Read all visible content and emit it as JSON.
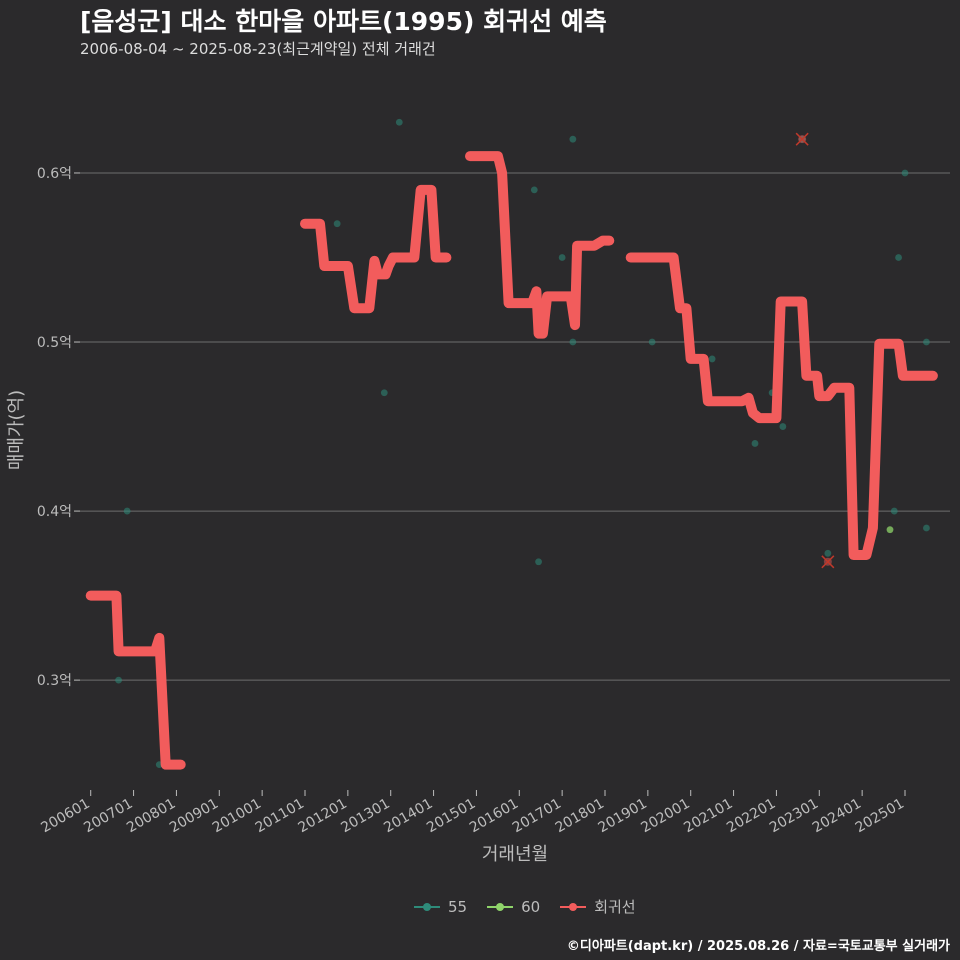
{
  "title": "[음성군] 대소 한마을 아파트(1995) 회귀선 예측",
  "subtitle": "2006-08-04 ~ 2025-08-23(최근계약일) 전체 거래건",
  "caption": "©디아파트(dapt.kr) / 2025.08.26 / 자료=국토교통부 실거래가",
  "colors": {
    "background": "#2b2a2c",
    "s55": "#2e8b7a",
    "s60": "#8fd46a",
    "regression": "#f25c5c",
    "grid": "#6e6e6e"
  },
  "chart_data": {
    "type": "scatter+line",
    "xlabel": "거래년월",
    "ylabel": "매매가(억)",
    "ylim": [
      0.235,
      0.655
    ],
    "xlim": [
      2005.75,
      2026.05
    ],
    "y_ticks": [
      {
        "value": 0.3,
        "label": "0.3억"
      },
      {
        "value": 0.4,
        "label": "0.4억"
      },
      {
        "value": 0.5,
        "label": "0.5억"
      },
      {
        "value": 0.6,
        "label": "0.6억"
      }
    ],
    "x_ticks": [
      "200601",
      "200701",
      "200801",
      "200901",
      "201001",
      "201101",
      "201201",
      "201301",
      "201401",
      "201501",
      "201601",
      "201701",
      "201801",
      "201901",
      "202001",
      "202101",
      "202201",
      "202301",
      "202401",
      "202501"
    ],
    "legend": [
      {
        "name": "55",
        "color": "#2e8b7a"
      },
      {
        "name": "60",
        "color": "#8fd46a"
      },
      {
        "name": "회귀선",
        "color": "#f25c5c"
      }
    ],
    "series": [
      {
        "name": "55",
        "points": [
          [
            2006.65,
            0.3
          ],
          [
            2006.85,
            0.4
          ],
          [
            2007.6,
            0.25
          ],
          [
            2011.75,
            0.57
          ],
          [
            2012.85,
            0.47
          ],
          [
            2013.2,
            0.63
          ],
          [
            2016.35,
            0.59
          ],
          [
            2016.45,
            0.37
          ],
          [
            2017.0,
            0.55
          ],
          [
            2017.25,
            0.62
          ],
          [
            2017.25,
            0.5
          ],
          [
            2019.1,
            0.5
          ],
          [
            2020.5,
            0.49
          ],
          [
            2021.5,
            0.44
          ],
          [
            2021.9,
            0.47
          ],
          [
            2022.0,
            0.46
          ],
          [
            2022.15,
            0.45
          ],
          [
            2022.6,
            0.62
          ],
          [
            2023.2,
            0.375
          ],
          [
            2024.75,
            0.4
          ],
          [
            2024.85,
            0.55
          ],
          [
            2025.0,
            0.6
          ],
          [
            2025.5,
            0.5
          ],
          [
            2025.5,
            0.39
          ]
        ]
      },
      {
        "name": "60",
        "points": [
          [
            2024.65,
            0.389
          ]
        ]
      }
    ],
    "outliers": [
      [
        2022.6,
        0.62
      ],
      [
        2023.2,
        0.37
      ]
    ],
    "regression_segments": [
      [
        [
          2006.0,
          0.35
        ],
        [
          2006.6,
          0.35
        ],
        [
          2006.65,
          0.317
        ],
        [
          2007.5,
          0.317
        ],
        [
          2007.6,
          0.325
        ],
        [
          2007.75,
          0.25
        ],
        [
          2008.1,
          0.25
        ]
      ],
      [
        [
          2011.0,
          0.57
        ],
        [
          2011.35,
          0.57
        ],
        [
          2011.45,
          0.545
        ],
        [
          2012.0,
          0.545
        ],
        [
          2012.15,
          0.52
        ],
        [
          2012.5,
          0.52
        ],
        [
          2012.62,
          0.548
        ],
        [
          2012.7,
          0.54
        ],
        [
          2012.88,
          0.54
        ],
        [
          2012.95,
          0.545
        ],
        [
          2013.05,
          0.55
        ],
        [
          2013.55,
          0.55
        ],
        [
          2013.7,
          0.59
        ],
        [
          2013.95,
          0.59
        ],
        [
          2014.05,
          0.55
        ],
        [
          2014.3,
          0.55
        ]
      ],
      [
        [
          2014.85,
          0.61
        ],
        [
          2015.5,
          0.61
        ],
        [
          2015.6,
          0.6
        ],
        [
          2015.75,
          0.523
        ],
        [
          2016.3,
          0.523
        ],
        [
          2016.4,
          0.53
        ],
        [
          2016.45,
          0.505
        ],
        [
          2016.55,
          0.505
        ],
        [
          2016.65,
          0.527
        ],
        [
          2017.2,
          0.527
        ],
        [
          2017.3,
          0.51
        ],
        [
          2017.35,
          0.557
        ],
        [
          2017.75,
          0.557
        ],
        [
          2017.95,
          0.56
        ],
        [
          2018.1,
          0.56
        ]
      ],
      [
        [
          2018.6,
          0.55
        ],
        [
          2019.6,
          0.55
        ],
        [
          2019.75,
          0.52
        ],
        [
          2019.9,
          0.52
        ],
        [
          2020.0,
          0.49
        ],
        [
          2020.3,
          0.49
        ],
        [
          2020.4,
          0.465
        ],
        [
          2021.2,
          0.465
        ],
        [
          2021.35,
          0.467
        ],
        [
          2021.45,
          0.458
        ],
        [
          2021.6,
          0.455
        ],
        [
          2022.0,
          0.455
        ],
        [
          2022.1,
          0.524
        ],
        [
          2022.6,
          0.524
        ],
        [
          2022.7,
          0.48
        ],
        [
          2022.95,
          0.48
        ],
        [
          2023.0,
          0.468
        ],
        [
          2023.2,
          0.468
        ],
        [
          2023.35,
          0.473
        ],
        [
          2023.7,
          0.473
        ],
        [
          2023.8,
          0.374
        ],
        [
          2024.0,
          0.374
        ],
        [
          2024.1,
          0.374
        ],
        [
          2024.25,
          0.39
        ],
        [
          2024.4,
          0.499
        ],
        [
          2024.85,
          0.499
        ],
        [
          2024.95,
          0.48
        ],
        [
          2025.65,
          0.48
        ]
      ]
    ]
  }
}
